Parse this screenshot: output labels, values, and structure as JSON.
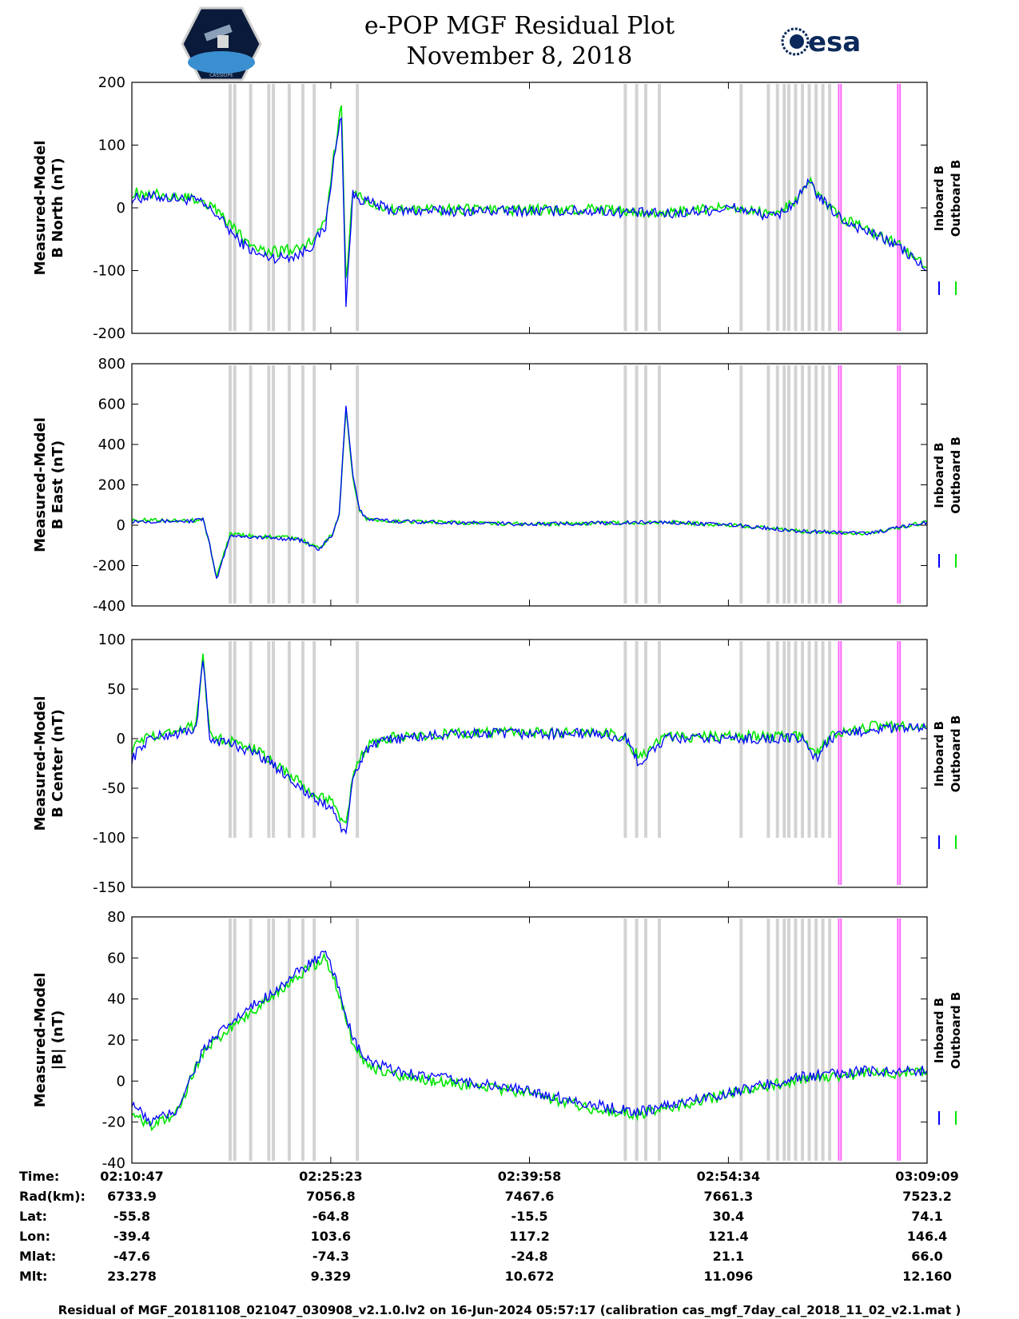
{
  "title": {
    "line1": "e-POP MGF Residual Plot",
    "line2": "November 8, 2018"
  },
  "logos": {
    "left": {
      "icon": "cassiope-satellite-logo",
      "text": "CASSIOPE"
    },
    "right": {
      "icon": "esa-logo",
      "text": "esa"
    }
  },
  "colors": {
    "inboard": "#0000ff",
    "outboard": "#00e600",
    "gray_marker": "#d3d3d3",
    "magenta_marker": "#ff66ff"
  },
  "legend": {
    "inboard": "Inboard B",
    "outboard": "Outboard B"
  },
  "time_ticks": [
    "02:10:47",
    "02:25:23",
    "02:39:58",
    "02:54:34",
    "03:09:09"
  ],
  "chart_data": [
    {
      "type": "line",
      "ylabel_lines": [
        "Measured-Model",
        "B North (nT)"
      ],
      "ylim": [
        -200,
        200
      ],
      "yticks": [
        200,
        100,
        0,
        -100,
        -200
      ],
      "x": [
        "02:10:47",
        "02:12:30",
        "02:14:00",
        "02:15:30",
        "02:17:00",
        "02:18:30",
        "02:20:00",
        "02:21:30",
        "02:23:00",
        "02:24:00",
        "02:25:00",
        "02:25:30",
        "02:26:10",
        "02:26:30",
        "02:27:00",
        "02:28:00",
        "02:30:00",
        "02:35:00",
        "02:40:00",
        "02:45:00",
        "02:50:00",
        "02:55:00",
        "02:58:00",
        "02:59:30",
        "03:00:30",
        "03:01:30",
        "03:03:00",
        "03:05:00",
        "03:07:00",
        "03:09:09"
      ],
      "series": [
        {
          "name": "Inboard B",
          "values": [
            15,
            18,
            15,
            12,
            -10,
            -50,
            -75,
            -80,
            -75,
            -60,
            -30,
            60,
            150,
            -150,
            20,
            10,
            -5,
            -5,
            -5,
            -5,
            -10,
            0,
            -15,
            10,
            40,
            10,
            -20,
            -40,
            -60,
            -100
          ]
        },
        {
          "name": "Outboard B",
          "values": [
            25,
            22,
            18,
            15,
            -2,
            -40,
            -65,
            -70,
            -65,
            -50,
            -20,
            65,
            170,
            -120,
            25,
            12,
            -3,
            -3,
            -3,
            -3,
            -8,
            2,
            -12,
            12,
            42,
            12,
            -18,
            -38,
            -58,
            -95
          ]
        }
      ]
    },
    {
      "type": "line",
      "ylabel_lines": [
        "Measured-Model",
        "B East (nT)"
      ],
      "ylim": [
        -400,
        800
      ],
      "yticks": [
        800,
        600,
        400,
        200,
        0,
        -200,
        -400
      ],
      "x": [
        "02:10:47",
        "02:13:00",
        "02:15:00",
        "02:16:00",
        "02:16:30",
        "02:17:00",
        "02:18:00",
        "02:20:00",
        "02:23:00",
        "02:24:30",
        "02:25:30",
        "02:26:00",
        "02:26:30",
        "02:27:00",
        "02:27:30",
        "02:28:00",
        "02:30:00",
        "02:40:00",
        "02:50:00",
        "02:55:00",
        "03:00:00",
        "03:05:00",
        "03:09:09"
      ],
      "series": [
        {
          "name": "Inboard B",
          "values": [
            20,
            20,
            20,
            30,
            -100,
            -270,
            -50,
            -60,
            -70,
            -120,
            -50,
            50,
            600,
            250,
            80,
            30,
            20,
            5,
            15,
            0,
            -30,
            -40,
            15
          ]
        },
        {
          "name": "Outboard B",
          "values": [
            25,
            25,
            22,
            30,
            -95,
            -260,
            -45,
            -55,
            -65,
            -115,
            -45,
            55,
            580,
            240,
            75,
            30,
            20,
            5,
            15,
            0,
            -30,
            -40,
            15
          ]
        }
      ]
    },
    {
      "type": "line",
      "ylabel_lines": [
        "Measured-Model",
        "B Center (nT)"
      ],
      "ylim": [
        -150,
        100
      ],
      "yticks": [
        100,
        50,
        0,
        -50,
        -100,
        -150
      ],
      "x": [
        "02:10:47",
        "02:12:00",
        "02:14:00",
        "02:15:30",
        "02:16:00",
        "02:16:30",
        "02:18:00",
        "02:20:00",
        "02:22:00",
        "02:24:00",
        "02:25:30",
        "02:26:30",
        "02:27:00",
        "02:28:00",
        "02:30:00",
        "02:35:00",
        "02:40:00",
        "02:45:00",
        "02:47:00",
        "02:48:00",
        "02:50:00",
        "02:55:00",
        "03:00:00",
        "03:01:00",
        "03:02:00",
        "03:05:00",
        "03:09:09"
      ],
      "series": [
        {
          "name": "Inboard B",
          "values": [
            -20,
            0,
            5,
            10,
            80,
            0,
            -5,
            -15,
            -35,
            -60,
            -70,
            -100,
            -40,
            -10,
            0,
            5,
            5,
            5,
            0,
            -25,
            0,
            0,
            0,
            -20,
            0,
            10,
            10
          ]
        },
        {
          "name": "Outboard B",
          "values": [
            -10,
            2,
            8,
            12,
            82,
            2,
            -3,
            -12,
            -32,
            -55,
            -65,
            -90,
            -35,
            -8,
            2,
            6,
            6,
            6,
            2,
            -20,
            2,
            2,
            2,
            -15,
            2,
            12,
            12
          ]
        }
      ]
    },
    {
      "type": "line",
      "ylabel_lines": [
        "Measured-Model",
        "|B| (nT)"
      ],
      "ylim": [
        -40,
        80
      ],
      "yticks": [
        80,
        60,
        40,
        20,
        0,
        -20,
        -40
      ],
      "x": [
        "02:10:47",
        "02:12:00",
        "02:14:00",
        "02:16:00",
        "02:18:00",
        "02:20:00",
        "02:22:00",
        "02:24:00",
        "02:25:00",
        "02:26:00",
        "02:27:00",
        "02:28:00",
        "02:30:00",
        "02:35:00",
        "02:40:00",
        "02:45:00",
        "02:48:00",
        "02:50:00",
        "02:55:00",
        "03:00:00",
        "03:05:00",
        "03:09:09"
      ],
      "series": [
        {
          "name": "Inboard B",
          "values": [
            -10,
            -20,
            -15,
            15,
            28,
            38,
            48,
            58,
            62,
            45,
            20,
            10,
            5,
            0,
            -5,
            -12,
            -15,
            -12,
            -5,
            2,
            5,
            5
          ]
        },
        {
          "name": "Outboard B",
          "values": [
            -14,
            -22,
            -16,
            14,
            26,
            36,
            46,
            56,
            60,
            42,
            18,
            8,
            3,
            -2,
            -6,
            -14,
            -16,
            -13,
            -6,
            1,
            4,
            4
          ]
        }
      ]
    }
  ],
  "gray_marker_times": [
    "02:18:00",
    "02:18:20",
    "02:19:30",
    "02:20:50",
    "02:21:10",
    "02:22:20",
    "02:23:20",
    "02:24:10",
    "02:27:20",
    "02:47:00",
    "02:47:50",
    "02:48:30",
    "02:49:30",
    "02:55:30",
    "02:57:30",
    "02:58:10",
    "02:58:40",
    "02:59:00",
    "02:59:30",
    "03:00:00",
    "03:00:30",
    "03:01:00",
    "03:01:30",
    "03:02:00"
  ],
  "magenta_marker_times": [
    "03:02:40",
    "03:02:50",
    "03:07:00",
    "03:07:10"
  ],
  "info_rows": [
    {
      "label": "Time:",
      "values": [
        "02:10:47",
        "02:25:23",
        "02:39:58",
        "02:54:34",
        "03:09:09"
      ]
    },
    {
      "label": "Rad(km):",
      "values": [
        "6733.9",
        "7056.8",
        "7467.6",
        "7661.3",
        "7523.2"
      ]
    },
    {
      "label": "Lat:",
      "values": [
        "-55.8",
        "-64.8",
        "-15.5",
        "30.4",
        "74.1"
      ]
    },
    {
      "label": "Lon:",
      "values": [
        "-39.4",
        "103.6",
        "117.2",
        "121.4",
        "146.4"
      ]
    },
    {
      "label": "Mlat:",
      "values": [
        "-47.6",
        "-74.3",
        "-24.8",
        "21.1",
        "66.0"
      ]
    },
    {
      "label": "Mlt:",
      "values": [
        "23.278",
        "9.329",
        "10.672",
        "11.096",
        "12.160"
      ]
    }
  ],
  "footer": "Residual of MGF_20181108_021047_030908_v2.1.0.lv2 on 16-Jun-2024 05:57:17 (calibration cas_mgf_7day_cal_2018_11_02_v2.1.mat )"
}
